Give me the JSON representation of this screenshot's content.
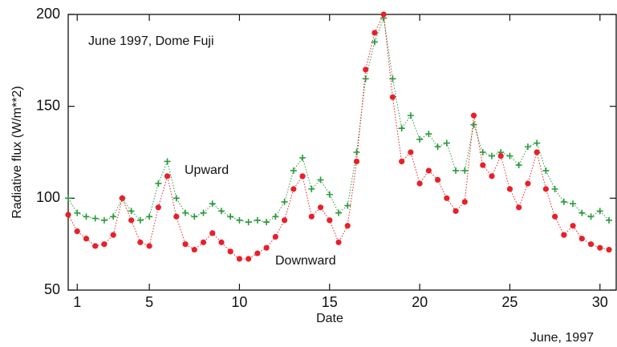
{
  "chart_data": {
    "type": "scatter-line",
    "annotation": "June 1997, Dome Fuji",
    "xlabel": "Date",
    "ylabel": "Radiative flux  (W/m**2)",
    "footnote": "June, 1997",
    "x": [
      0.5,
      1,
      1.5,
      2,
      2.5,
      3,
      3.5,
      4,
      4.5,
      5,
      5.5,
      6,
      6.5,
      7,
      7.5,
      8,
      8.5,
      9,
      9.5,
      10,
      10.5,
      11,
      11.5,
      12,
      12.5,
      13,
      13.5,
      14,
      14.5,
      15,
      15.5,
      16,
      16.5,
      17,
      17.5,
      18,
      18.5,
      19,
      19.5,
      20,
      20.5,
      21,
      21.5,
      22,
      22.5,
      23,
      23.5,
      24,
      24.5,
      25,
      25.5,
      26,
      26.5,
      27,
      27.5,
      28,
      28.5,
      29,
      29.5,
      30,
      30.5
    ],
    "series": [
      {
        "name": "Upward",
        "color": "#2a9a3a",
        "marker": "plus",
        "values": [
          100,
          92,
          90,
          89,
          88,
          90,
          100,
          93,
          88,
          90,
          108,
          120,
          100,
          92,
          90,
          92,
          97,
          93,
          90,
          88,
          87,
          88,
          87,
          90,
          98,
          115,
          122,
          105,
          110,
          102,
          92,
          96,
          125,
          165,
          185,
          198,
          165,
          138,
          145,
          132,
          135,
          128,
          130,
          115,
          115,
          140,
          125,
          123,
          125,
          123,
          118,
          128,
          130,
          115,
          105,
          98,
          97,
          92,
          90,
          93,
          88
        ]
      },
      {
        "name": "Downward",
        "color": "#e8202a",
        "marker": "circle",
        "values": [
          91,
          82,
          78,
          74,
          75,
          80,
          100,
          88,
          76,
          74,
          95,
          112,
          90,
          75,
          72,
          76,
          81,
          76,
          71,
          67,
          67,
          70,
          73,
          79,
          88,
          105,
          112,
          90,
          95,
          88,
          76,
          85,
          120,
          170,
          190,
          200,
          155,
          120,
          125,
          108,
          115,
          110,
          100,
          93,
          98,
          145,
          118,
          112,
          123,
          105,
          95,
          108,
          125,
          105,
          90,
          80,
          85,
          78,
          75,
          73,
          72
        ]
      }
    ],
    "xlim": [
      0.5,
      30.9
    ],
    "xticks": [
      1,
      5,
      10,
      15,
      20,
      25,
      30
    ],
    "ylim": [
      50,
      200
    ],
    "yticks": [
      50,
      100,
      150,
      200
    ]
  }
}
